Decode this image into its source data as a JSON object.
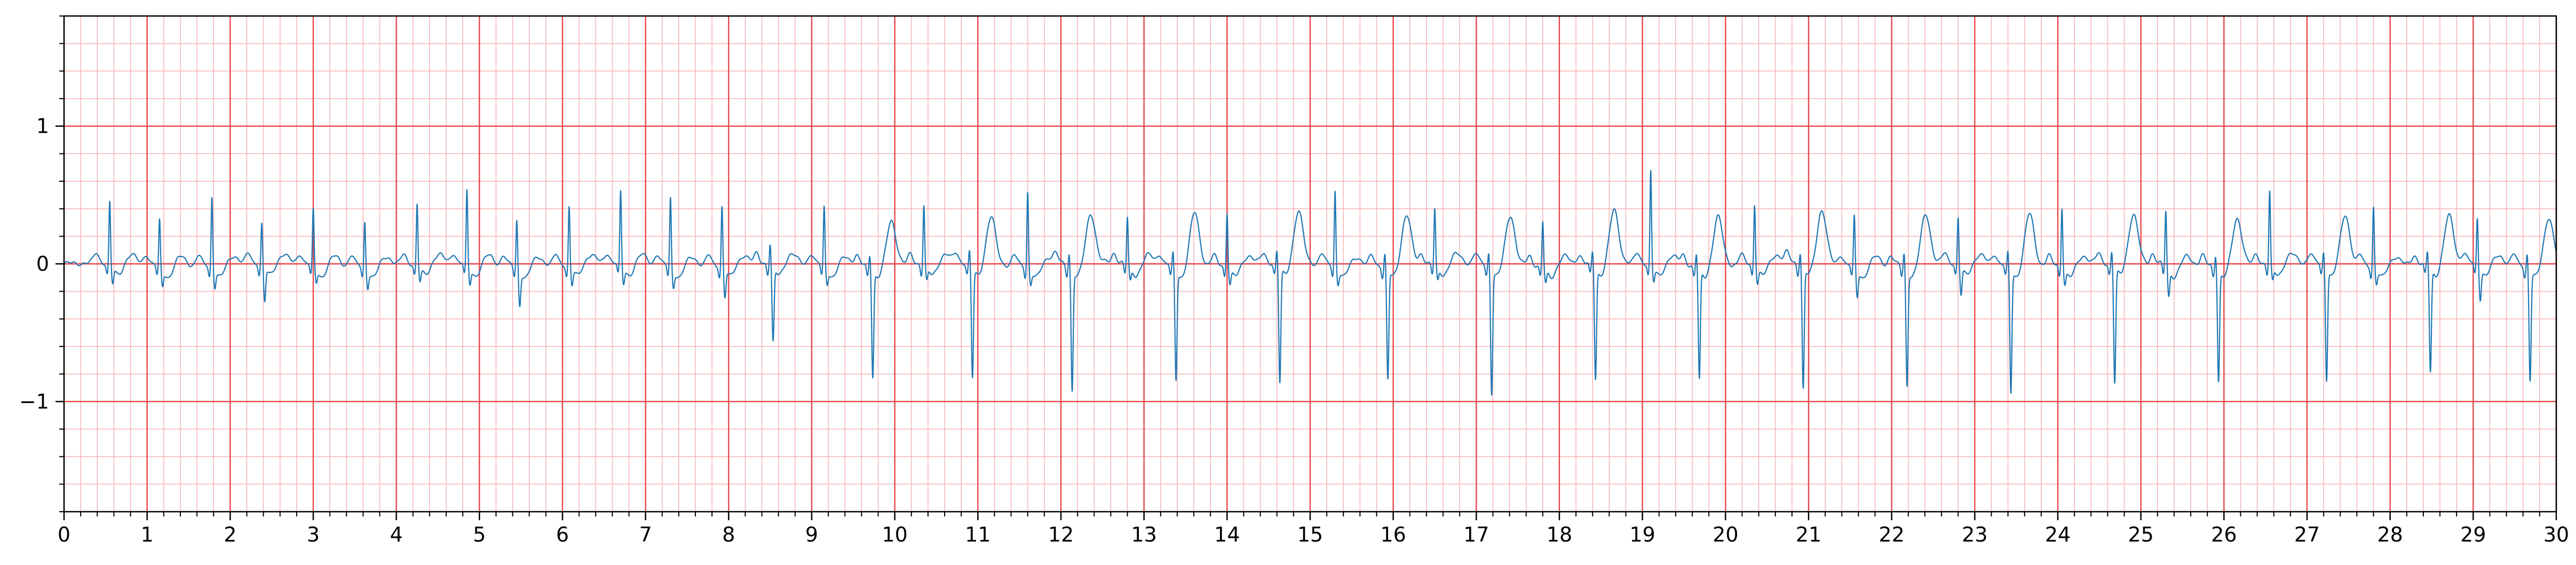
{
  "chart_data": {
    "type": "line",
    "title": "",
    "xlabel": "",
    "ylabel": "",
    "xlim": [
      0,
      30
    ],
    "ylim": [
      -1.8,
      1.8
    ],
    "grid": true,
    "grid_major_color": "#e8454a",
    "grid_minor_color": "#f7b7b9",
    "x_ticks": [
      0,
      1,
      2,
      3,
      4,
      5,
      6,
      7,
      8,
      9,
      10,
      11,
      12,
      13,
      14,
      15,
      16,
      17,
      18,
      19,
      20,
      21,
      22,
      23,
      24,
      25,
      26,
      27,
      28,
      29,
      30
    ],
    "x_tick_labels": [
      "0",
      "1",
      "2",
      "3",
      "4",
      "5",
      "6",
      "7",
      "8",
      "9",
      "10",
      "11",
      "12",
      "13",
      "14",
      "15",
      "16",
      "17",
      "18",
      "19",
      "20",
      "21",
      "22",
      "23",
      "24",
      "25",
      "26",
      "27",
      "28",
      "29",
      "30"
    ],
    "y_ticks": [
      -1,
      0,
      1
    ],
    "y_tick_labels": [
      "−1",
      "0",
      "1"
    ],
    "series": [
      {
        "color": "#1f77b4",
        "beats": [
          {
            "t": 0.55,
            "r": 0.45,
            "s": -0.12
          },
          {
            "t": 1.15,
            "r": 0.33,
            "s": -0.12
          },
          {
            "t": 1.78,
            "r": 0.51,
            "s": -0.12
          },
          {
            "t": 2.38,
            "r": 0.3,
            "s": -0.25
          },
          {
            "t": 3.0,
            "r": 0.4,
            "s": -0.1
          },
          {
            "t": 3.62,
            "r": 0.33,
            "s": -0.12
          },
          {
            "t": 4.25,
            "r": 0.44,
            "s": -0.1
          },
          {
            "t": 4.85,
            "r": 0.53,
            "s": -0.12
          },
          {
            "t": 5.45,
            "r": 0.34,
            "s": -0.25
          },
          {
            "t": 6.08,
            "r": 0.43,
            "s": -0.12
          },
          {
            "t": 6.7,
            "r": 0.52,
            "s": -0.12
          },
          {
            "t": 7.3,
            "r": 0.5,
            "s": -0.12
          },
          {
            "t": 7.92,
            "r": 0.44,
            "s": -0.2
          },
          {
            "t": 8.5,
            "r": 0.15,
            "s": -0.55
          },
          {
            "t": 9.15,
            "r": 0.43,
            "s": -0.1
          },
          {
            "t": 9.7,
            "r": 0.1,
            "s": -0.77,
            "t_wave": 0.32
          },
          {
            "t": 10.35,
            "r": 0.43,
            "s": -0.1
          },
          {
            "t": 10.9,
            "r": 0.1,
            "s": -0.8,
            "t_wave": 0.34
          },
          {
            "t": 11.6,
            "r": 0.55,
            "s": -0.1
          },
          {
            "t": 12.1,
            "r": 0.1,
            "s": -0.88,
            "t_wave": 0.36
          },
          {
            "t": 12.8,
            "r": 0.34,
            "s": -0.1
          },
          {
            "t": 13.35,
            "r": 0.1,
            "s": -0.8,
            "t_wave": 0.38
          },
          {
            "t": 14.0,
            "r": 0.4,
            "s": -0.1
          },
          {
            "t": 14.6,
            "r": 0.1,
            "s": -0.84,
            "t_wave": 0.37
          },
          {
            "t": 15.3,
            "r": 0.55,
            "s": -0.1
          },
          {
            "t": 15.9,
            "r": 0.1,
            "s": -0.8,
            "t_wave": 0.36
          },
          {
            "t": 16.5,
            "r": 0.4,
            "s": -0.1
          },
          {
            "t": 17.15,
            "r": 0.1,
            "s": -0.9,
            "t_wave": 0.36
          },
          {
            "t": 17.8,
            "r": 0.33,
            "s": -0.1
          },
          {
            "t": 18.4,
            "r": 0.1,
            "s": -0.8,
            "t_wave": 0.38
          },
          {
            "t": 19.1,
            "r": 0.68,
            "s": -0.1
          },
          {
            "t": 19.65,
            "r": 0.1,
            "s": -0.8,
            "t_wave": 0.35
          },
          {
            "t": 20.35,
            "r": 0.45,
            "s": -0.1
          },
          {
            "t": 20.9,
            "r": 0.1,
            "s": -0.88,
            "t_wave": 0.39
          },
          {
            "t": 21.55,
            "r": 0.36,
            "s": -0.2
          },
          {
            "t": 22.15,
            "r": 0.1,
            "s": -0.84,
            "t_wave": 0.36
          },
          {
            "t": 22.8,
            "r": 0.34,
            "s": -0.2
          },
          {
            "t": 23.4,
            "r": 0.1,
            "s": -0.9,
            "t_wave": 0.37
          },
          {
            "t": 24.05,
            "r": 0.44,
            "s": -0.1
          },
          {
            "t": 24.65,
            "r": 0.1,
            "s": -0.84,
            "t_wave": 0.35
          },
          {
            "t": 25.3,
            "r": 0.4,
            "s": -0.2
          },
          {
            "t": 25.9,
            "r": 0.1,
            "s": -0.8,
            "t_wave": 0.34
          },
          {
            "t": 26.55,
            "r": 0.53,
            "s": -0.1
          },
          {
            "t": 27.2,
            "r": 0.1,
            "s": -0.8,
            "t_wave": 0.36
          },
          {
            "t": 27.8,
            "r": 0.44,
            "s": -0.1
          },
          {
            "t": 28.45,
            "r": 0.1,
            "s": -0.75,
            "t_wave": 0.34
          },
          {
            "t": 29.05,
            "r": 0.34,
            "s": -0.22
          },
          {
            "t": 29.65,
            "r": 0.1,
            "s": -0.8,
            "t_wave": 0.35
          }
        ]
      }
    ]
  }
}
